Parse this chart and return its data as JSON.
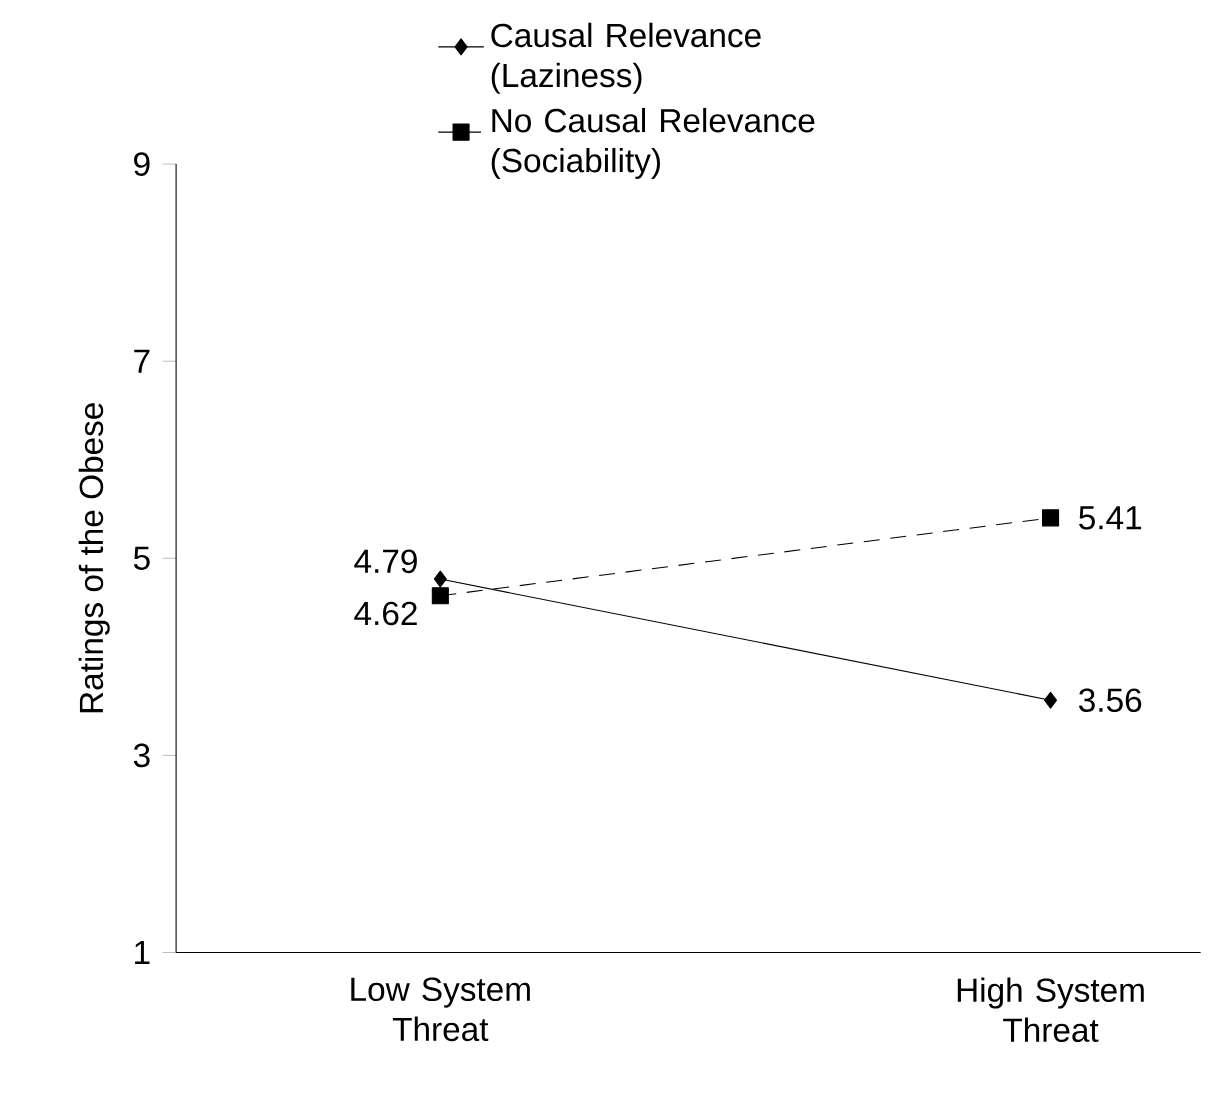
{
  "chart_data": {
    "type": "line",
    "ylabel": "Ratings of the Obese",
    "categories": [
      "Low System Threat",
      "High System Threat"
    ],
    "series": [
      {
        "name": "Causal Relevance (Laziness)",
        "color": "#000000",
        "marker": "diamond",
        "line_style": "solid",
        "values": [
          4.79,
          3.56
        ]
      },
      {
        "name": "No Causal Relevance (Sociability)",
        "color": "#000000",
        "marker": "square",
        "line_style": "dashed",
        "values": [
          4.62,
          5.41
        ]
      }
    ],
    "ylim": [
      1,
      9
    ],
    "yticks": [
      1,
      3,
      5,
      7,
      9
    ],
    "legend": "top",
    "data_labels": true,
    "grid": false
  }
}
